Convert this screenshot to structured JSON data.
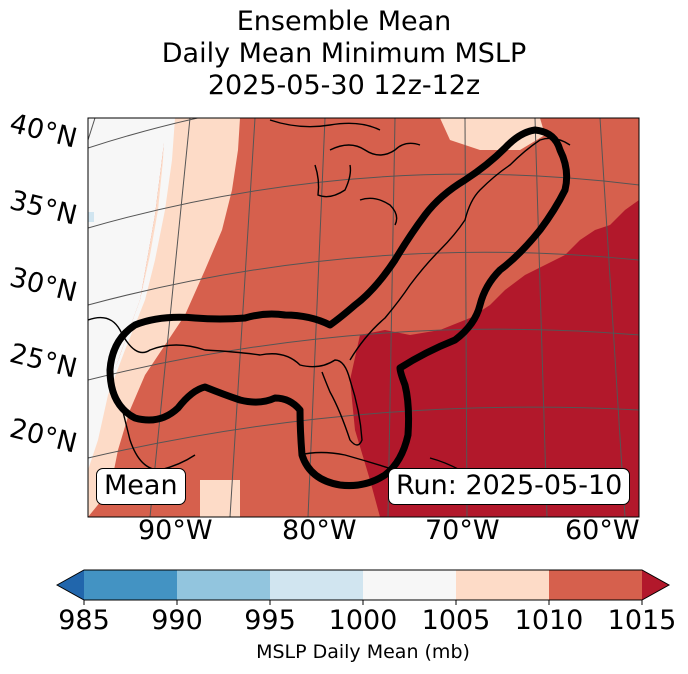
{
  "title": {
    "line1": "Ensemble Mean",
    "line2": "Daily Mean Minimum MSLP",
    "line3": "2025-05-30 12z-12z"
  },
  "map": {
    "lat_labels": [
      "40°N",
      "35°N",
      "30°N",
      "25°N",
      "20°N"
    ],
    "lon_labels": [
      "90°W",
      "80°W",
      "70°W",
      "60°W"
    ],
    "mean_label": "Mean",
    "run_label": "Run: 2025-05-10",
    "icons": [
      "coastline-outline",
      "contour-line"
    ]
  },
  "colorbar": {
    "ticks": [
      "985",
      "990",
      "995",
      "1000",
      "1005",
      "1010",
      "1015"
    ],
    "label": "MSLP Daily Mean (mb)",
    "colors": [
      "#2166ac",
      "#4393c3",
      "#92c5de",
      "#d1e5f0",
      "#f7f7f7",
      "#fddbc7",
      "#d6604d",
      "#b2182b"
    ]
  }
}
